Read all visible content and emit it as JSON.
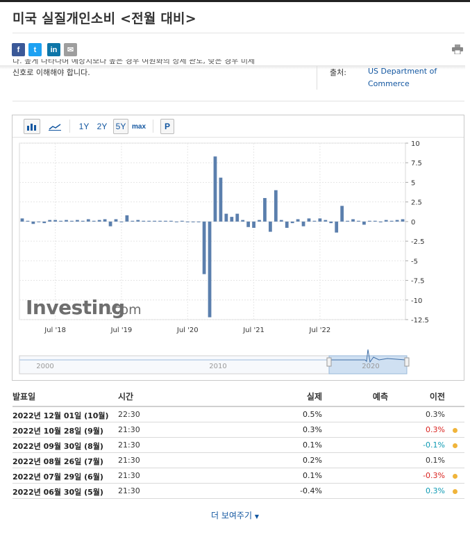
{
  "page": {
    "title": "미국 실질개인소비 <전월 대비>"
  },
  "share": [
    {
      "name": "facebook",
      "glyph": "f",
      "color": "#3b5998"
    },
    {
      "name": "twitter",
      "glyph": "t",
      "color": "#1da1f2"
    },
    {
      "name": "linkedin",
      "glyph": "in",
      "color": "#0e76a8"
    },
    {
      "name": "email",
      "glyph": "✉",
      "color": "#9e9e9e"
    }
  ],
  "description": {
    "line1": "다. 높게 나타나며 예상치보다 높은 경우 여원화의 상세 관도, 낮은 경우 미세",
    "line2": "신호로 이해해야 합니다."
  },
  "source": {
    "label": "출처:",
    "value": "US Department of Commerce"
  },
  "chart_toolbar": {
    "ranges": [
      "1Y",
      "2Y",
      "5Y",
      "max"
    ],
    "selected": "5Y",
    "p_label": "P"
  },
  "chart_data": {
    "type": "bar",
    "x_tick_labels": [
      "Jul '18",
      "Jul '19",
      "Jul '20",
      "Jul '21",
      "Jul '22"
    ],
    "y_tick_labels": [
      "10",
      "7.5",
      "5",
      "2.5",
      "0",
      "-2.5",
      "-5",
      "-7.5",
      "-10",
      "-12.5"
    ],
    "ylim": [
      -12.5,
      10
    ],
    "values": [
      0.4,
      0.1,
      -0.3,
      0.0,
      -0.2,
      0.2,
      0.2,
      0.1,
      0.2,
      0.1,
      0.2,
      0.1,
      0.3,
      0.1,
      0.2,
      0.3,
      -0.6,
      0.3,
      0.0,
      0.8,
      0.1,
      0.2,
      0.1,
      0.1,
      0.1,
      0.1,
      0.1,
      0.1,
      0.0,
      0.1,
      0.0,
      0.0,
      0.0,
      -6.7,
      -12.2,
      8.3,
      5.6,
      1.0,
      0.6,
      1.0,
      0.2,
      -0.7,
      -0.8,
      0.2,
      3.0,
      -1.3,
      4.0,
      0.2,
      -0.8,
      -0.2,
      0.3,
      -0.6,
      0.4,
      0.1,
      0.4,
      0.2,
      -0.2,
      -1.4,
      2.0,
      0.1,
      0.3,
      0.1,
      -0.4,
      0.1,
      0.1,
      -0.1,
      0.2,
      0.1,
      0.2,
      0.3
    ],
    "watermark": "Investing.com",
    "navigator_labels": [
      "2000",
      "2010",
      "2020"
    ],
    "grid": true
  },
  "table": {
    "headers": {
      "date": "발표일",
      "time": "시간",
      "actual": "실제",
      "forecast": "예측",
      "previous": "이전"
    },
    "rows": [
      {
        "date": "2022년 12월 01일 (10월)",
        "time": "22:30",
        "actual": "0.5%",
        "forecast": "",
        "previous": "0.3%",
        "prev_color": "#333333",
        "dot": false
      },
      {
        "date": "2022년 10월 28일 (9월)",
        "time": "21:30",
        "actual": "0.3%",
        "forecast": "",
        "previous": "0.3%",
        "prev_color": "#d9231f",
        "dot": true
      },
      {
        "date": "2022년 09월 30일 (8월)",
        "time": "21:30",
        "actual": "0.1%",
        "forecast": "",
        "previous": "-0.1%",
        "prev_color": "#0e9ab3",
        "dot": true
      },
      {
        "date": "2022년 08월 26일 (7월)",
        "time": "21:30",
        "actual": "0.2%",
        "forecast": "",
        "previous": "0.1%",
        "prev_color": "#333333",
        "dot": false
      },
      {
        "date": "2022년 07월 29일 (6월)",
        "time": "21:30",
        "actual": "0.1%",
        "forecast": "",
        "previous": "-0.3%",
        "prev_color": "#d9231f",
        "dot": true
      },
      {
        "date": "2022년 06월 30일 (5월)",
        "time": "21:30",
        "actual": "-0.4%",
        "forecast": "",
        "previous": "0.3%",
        "prev_color": "#0e9ab3",
        "dot": true
      }
    ]
  },
  "show_more": "더 보여주기"
}
